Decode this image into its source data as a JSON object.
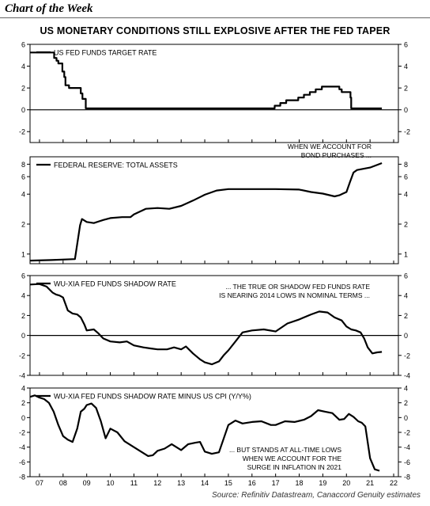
{
  "header": "Chart of the Week",
  "title": "US MONETARY CONDITIONS STILL EXPLOSIVE AFTER THE FED TAPER",
  "source": "Source: Refinitiv Datastream, Canaccord Genuity estimates",
  "x_ticks": [
    "07",
    "08",
    "09",
    "10",
    "11",
    "12",
    "13",
    "14",
    "15",
    "16",
    "17",
    "18",
    "19",
    "20",
    "21",
    "22"
  ],
  "chart_data": [
    {
      "type": "line",
      "series_label": "US FED FUNDS TARGET RATE",
      "ylim": [
        -3,
        6
      ],
      "yticks": [
        -2,
        0,
        2,
        4,
        6
      ],
      "zero_line": true,
      "step": true,
      "x": [
        2006.6,
        2007.55,
        2007.62,
        2007.72,
        2007.8,
        2007.87,
        2007.97,
        2008.05,
        2008.1,
        2008.25,
        2008.35,
        2008.75,
        2008.82,
        2008.96,
        2015.96,
        2016.96,
        2017.2,
        2017.45,
        2017.96,
        2018.2,
        2018.45,
        2018.7,
        2018.96,
        2019.55,
        2019.7,
        2019.8,
        2020.17,
        2020.2,
        2021.5
      ],
      "values": [
        5.25,
        5.25,
        4.75,
        4.5,
        4.25,
        4.25,
        3.5,
        3.0,
        2.25,
        2.0,
        2.0,
        1.5,
        1.0,
        0.125,
        0.125,
        0.375,
        0.625,
        0.875,
        1.125,
        1.375,
        1.625,
        1.875,
        2.125,
        2.125,
        1.875,
        1.625,
        1.125,
        0.125,
        0.125
      ],
      "annotation": []
    },
    {
      "type": "line",
      "series_label": "FEDERAL RESERVE: TOTAL ASSETS",
      "scale": "log",
      "ylim": [
        0.8,
        9.5
      ],
      "yticks": [
        1,
        2,
        4,
        6,
        8
      ],
      "zero_line": false,
      "x": [
        2006.6,
        2007.5,
        2008.5,
        2008.72,
        2008.8,
        2009.0,
        2009.3,
        2009.7,
        2010.0,
        2010.5,
        2010.85,
        2011.0,
        2011.5,
        2012.0,
        2012.5,
        2013.0,
        2013.5,
        2014.0,
        2014.5,
        2015.0,
        2016.0,
        2017.0,
        2018.0,
        2018.5,
        2019.0,
        2019.5,
        2019.7,
        2019.85,
        2020.0,
        2020.15,
        2020.3,
        2020.45,
        2021.0,
        2021.5
      ],
      "values": [
        0.86,
        0.87,
        0.89,
        1.95,
        2.25,
        2.1,
        2.05,
        2.2,
        2.3,
        2.35,
        2.35,
        2.5,
        2.85,
        2.9,
        2.85,
        3.05,
        3.45,
        3.95,
        4.35,
        4.5,
        4.5,
        4.5,
        4.45,
        4.2,
        4.05,
        3.8,
        3.9,
        4.05,
        4.2,
        5.3,
        6.6,
        7.0,
        7.4,
        8.2
      ],
      "annotation": [
        "WHEN WE ACCOUNT FOR",
        "BOND PURCHASES ..."
      ]
    },
    {
      "type": "line",
      "series_label": "WU-XIA FED FUNDS SHADOW RATE",
      "ylim": [
        -4,
        6
      ],
      "yticks": [
        -4,
        -2,
        0,
        2,
        4,
        6
      ],
      "zero_line": true,
      "x": [
        2006.6,
        2007.0,
        2007.3,
        2007.55,
        2007.7,
        2007.85,
        2008.0,
        2008.2,
        2008.4,
        2008.6,
        2008.75,
        2008.9,
        2009.0,
        2009.3,
        2009.5,
        2009.7,
        2010.0,
        2010.4,
        2010.7,
        2011.0,
        2011.4,
        2011.7,
        2012.0,
        2012.4,
        2012.7,
        2013.0,
        2013.2,
        2013.5,
        2013.8,
        2014.0,
        2014.3,
        2014.6,
        2014.8,
        2015.0,
        2015.3,
        2015.6,
        2016.0,
        2016.5,
        2017.0,
        2017.5,
        2018.0,
        2018.5,
        2018.85,
        2019.2,
        2019.5,
        2019.8,
        2020.0,
        2020.2,
        2020.4,
        2020.6,
        2020.75,
        2020.9,
        2021.1,
        2021.3,
        2021.5
      ],
      "values": [
        5.1,
        5.15,
        4.9,
        4.3,
        4.1,
        4.0,
        3.8,
        2.5,
        2.2,
        2.1,
        1.8,
        1.1,
        0.5,
        0.6,
        0.2,
        -0.3,
        -0.6,
        -0.7,
        -0.6,
        -1.0,
        -1.2,
        -1.3,
        -1.4,
        -1.4,
        -1.2,
        -1.4,
        -1.1,
        -1.8,
        -2.4,
        -2.7,
        -2.9,
        -2.6,
        -2.0,
        -1.5,
        -0.6,
        0.3,
        0.5,
        0.6,
        0.4,
        1.2,
        1.6,
        2.1,
        2.4,
        2.3,
        1.8,
        1.5,
        0.9,
        0.6,
        0.5,
        0.3,
        -0.3,
        -1.2,
        -1.8,
        -1.7,
        -1.65
      ],
      "annotation": [
        "... THE TRUE OR SHADOW FED FUNDS RATE",
        "IS NEARING 2014 LOWS IN NOMINAL TERMS ..."
      ]
    },
    {
      "type": "line",
      "series_label": "WU-XIA FED FUNDS SHADOW RATE MINUS US CPI (Y/Y%)",
      "ylim": [
        -8,
        4
      ],
      "yticks": [
        -8,
        -6,
        -4,
        -2,
        0,
        2,
        4
      ],
      "zero_line": false,
      "x": [
        2006.6,
        2006.8,
        2007.0,
        2007.2,
        2007.4,
        2007.6,
        2007.8,
        2008.0,
        2008.2,
        2008.4,
        2008.6,
        2008.75,
        2008.9,
        2009.0,
        2009.2,
        2009.4,
        2009.6,
        2009.8,
        2010.0,
        2010.3,
        2010.6,
        2011.0,
        2011.3,
        2011.6,
        2011.8,
        2012.0,
        2012.3,
        2012.6,
        2013.0,
        2013.3,
        2013.6,
        2013.8,
        2014.0,
        2014.3,
        2014.6,
        2015.0,
        2015.3,
        2015.6,
        2016.0,
        2016.4,
        2016.8,
        2017.0,
        2017.4,
        2017.8,
        2018.2,
        2018.5,
        2018.8,
        2019.1,
        2019.4,
        2019.7,
        2019.9,
        2020.1,
        2020.3,
        2020.5,
        2020.65,
        2020.8,
        2021.0,
        2021.2,
        2021.4
      ],
      "values": [
        2.8,
        3.0,
        2.7,
        2.5,
        2.0,
        0.8,
        -1.0,
        -2.5,
        -3.0,
        -3.3,
        -1.5,
        0.8,
        1.2,
        1.7,
        1.9,
        1.3,
        -0.5,
        -2.8,
        -1.5,
        -2.0,
        -3.2,
        -4.0,
        -4.6,
        -5.2,
        -5.1,
        -4.5,
        -4.2,
        -3.6,
        -4.4,
        -3.6,
        -3.4,
        -3.3,
        -4.6,
        -4.9,
        -4.7,
        -1.0,
        -0.4,
        -0.8,
        -0.6,
        -0.5,
        -1.0,
        -1.0,
        -0.5,
        -0.6,
        -0.3,
        0.2,
        1.0,
        0.8,
        0.6,
        -0.3,
        -0.2,
        0.5,
        0.1,
        -0.5,
        -0.7,
        -1.2,
        -5.5,
        -7.0,
        -7.2
      ],
      "annotation": [
        "... BUT STANDS AT ALL-TIME LOWS",
        "WHEN WE ACCOUNT FOR THE",
        "SURGE IN INFLATION IN 2021"
      ]
    }
  ]
}
